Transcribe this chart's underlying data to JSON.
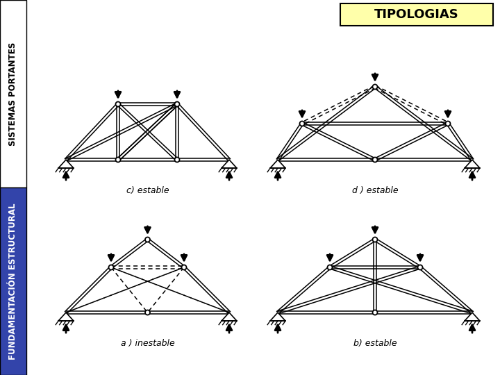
{
  "bg_color": "#ffffff",
  "left_bar_top_color": "#ffffff",
  "left_bar_top_text": "SISTEMAS PORTANTES",
  "left_bar_top_text_color": "#000000",
  "left_bar_bottom_color": "#3344aa",
  "left_bar_bottom_text": "FUNDAMENTACIÓN ESTRUCTURAL",
  "left_bar_bottom_text_color": "#ffffff",
  "title_box_color": "#ffffaa",
  "title_box_border": "#000000",
  "title_text": "TIPOLOGIAS",
  "title_text_color": "#000000",
  "diagram_labels": [
    "a ) inestable",
    "b) estable",
    "c) estable",
    "d ) estable"
  ],
  "label_fontsize": 9,
  "title_fontsize": 13,
  "sidebar_fontsize": 8.5,
  "left_bar_width": 38
}
